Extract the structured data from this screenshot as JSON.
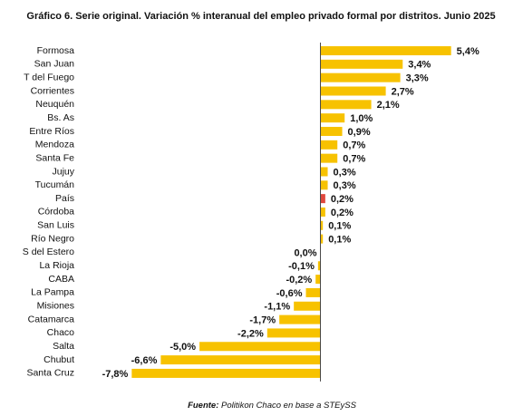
{
  "chart_data": {
    "type": "hbar",
    "title": "Gráfico 6. Serie original. Variación % interanual del empleo privado formal por distritos. Junio 2025",
    "categories": [
      "Formosa",
      "San Juan",
      "T del Fuego",
      "Corrientes",
      "Neuquén",
      "Bs. As",
      "Entre Ríos",
      "Mendoza",
      "Santa Fe",
      "Jujuy",
      "Tucumán",
      "País",
      "Córdoba",
      "San Luis",
      "Río Negro",
      "S del Estero",
      "La Rioja",
      "CABA",
      "La Pampa",
      "Misiones",
      "Catamarca",
      "Chaco",
      "Salta",
      "Chubut",
      "Santa Cruz"
    ],
    "values": [
      5.4,
      3.4,
      3.3,
      2.7,
      2.1,
      1.0,
      0.9,
      0.7,
      0.7,
      0.3,
      0.3,
      0.2,
      0.2,
      0.1,
      0.1,
      0.0,
      -0.1,
      -0.2,
      -0.6,
      -1.1,
      -1.7,
      -2.2,
      -5.0,
      -6.6,
      -7.8
    ],
    "value_labels": [
      "5,4%",
      "3,4%",
      "3,3%",
      "2,7%",
      "2,1%",
      "1,0%",
      "0,9%",
      "0,7%",
      "0,7%",
      "0,3%",
      "0,3%",
      "0,2%",
      "0,2%",
      "0,1%",
      "0,1%",
      "0,0%",
      "-0,1%",
      "-0,2%",
      "-0,6%",
      "-1,1%",
      "-1,7%",
      "-2,2%",
      "-5,0%",
      "-6,6%",
      "-7,8%"
    ],
    "colors": [
      "#f7c200",
      "#f7c200",
      "#f7c200",
      "#f7c200",
      "#f7c200",
      "#f7c200",
      "#f7c200",
      "#f7c200",
      "#f7c200",
      "#f7c200",
      "#f7c200",
      "#e0473c",
      "#f7c200",
      "#f7c200",
      "#f7c200",
      "#f7c200",
      "#f7c200",
      "#f7c200",
      "#f7c200",
      "#f7c200",
      "#f7c200",
      "#f7c200",
      "#f7c200",
      "#f7c200",
      "#f7c200"
    ],
    "xlim": [
      -8,
      5.6
    ],
    "source_label": "Fuente:",
    "source": "Politikon Chaco en base a STEySS"
  }
}
